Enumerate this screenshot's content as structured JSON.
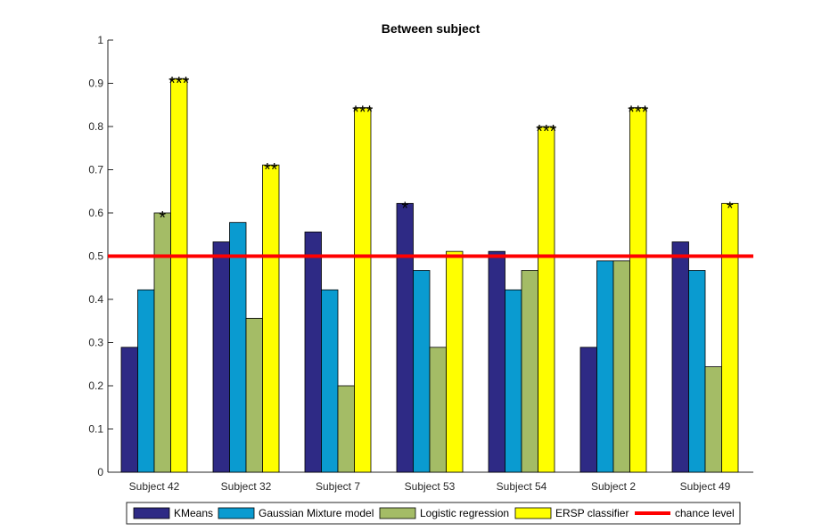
{
  "chart_data": {
    "type": "bar",
    "title": "Between subject",
    "xlabel": "",
    "ylabel": "",
    "categories": [
      "Subject 42",
      "Subject 32",
      "Subject 7",
      "Subject 53",
      "Subject 54",
      "Subject 2",
      "Subject 49"
    ],
    "ylim": [
      0,
      1
    ],
    "yticks": [
      0,
      0.1,
      0.2,
      0.3,
      0.4,
      0.5,
      0.6,
      0.7,
      0.8,
      0.9,
      1
    ],
    "ytick_labels": [
      "0",
      "0.1",
      "0.2",
      "0.3",
      "0.4",
      "0.5",
      "0.6",
      "0.7",
      "0.8",
      "0.9",
      "1"
    ],
    "series": [
      {
        "name": "KMeans",
        "color": "#2e2a85",
        "values": [
          0.289,
          0.533,
          0.556,
          0.622,
          0.511,
          0.289,
          0.533
        ]
      },
      {
        "name": "Gaussian Mixture model",
        "color": "#0a9bd0",
        "values": [
          0.422,
          0.578,
          0.422,
          0.467,
          0.422,
          0.489,
          0.467
        ]
      },
      {
        "name": "Logistic regression",
        "color": "#a4bc66",
        "values": [
          0.6,
          0.356,
          0.2,
          0.289,
          0.467,
          0.489,
          0.244
        ]
      },
      {
        "name": "ERSP classifier",
        "color": "#ffff00",
        "values": [
          0.911,
          0.711,
          0.844,
          0.511,
          0.8,
          0.844,
          0.622
        ]
      }
    ],
    "reference_line": {
      "name": "chance level",
      "value": 0.5,
      "color": "#ff0000"
    },
    "significance": [
      {
        "category": 0,
        "series": 2,
        "text": "*"
      },
      {
        "category": 0,
        "series": 3,
        "text": "***"
      },
      {
        "category": 1,
        "series": 3,
        "text": "**"
      },
      {
        "category": 2,
        "series": 3,
        "text": "***"
      },
      {
        "category": 3,
        "series": 0,
        "text": "*"
      },
      {
        "category": 4,
        "series": 3,
        "text": "***"
      },
      {
        "category": 5,
        "series": 3,
        "text": "***"
      },
      {
        "category": 6,
        "series": 3,
        "text": "*"
      }
    ],
    "legend": {
      "placement": "bottom",
      "orientation": "horizontal"
    },
    "grid": false
  }
}
